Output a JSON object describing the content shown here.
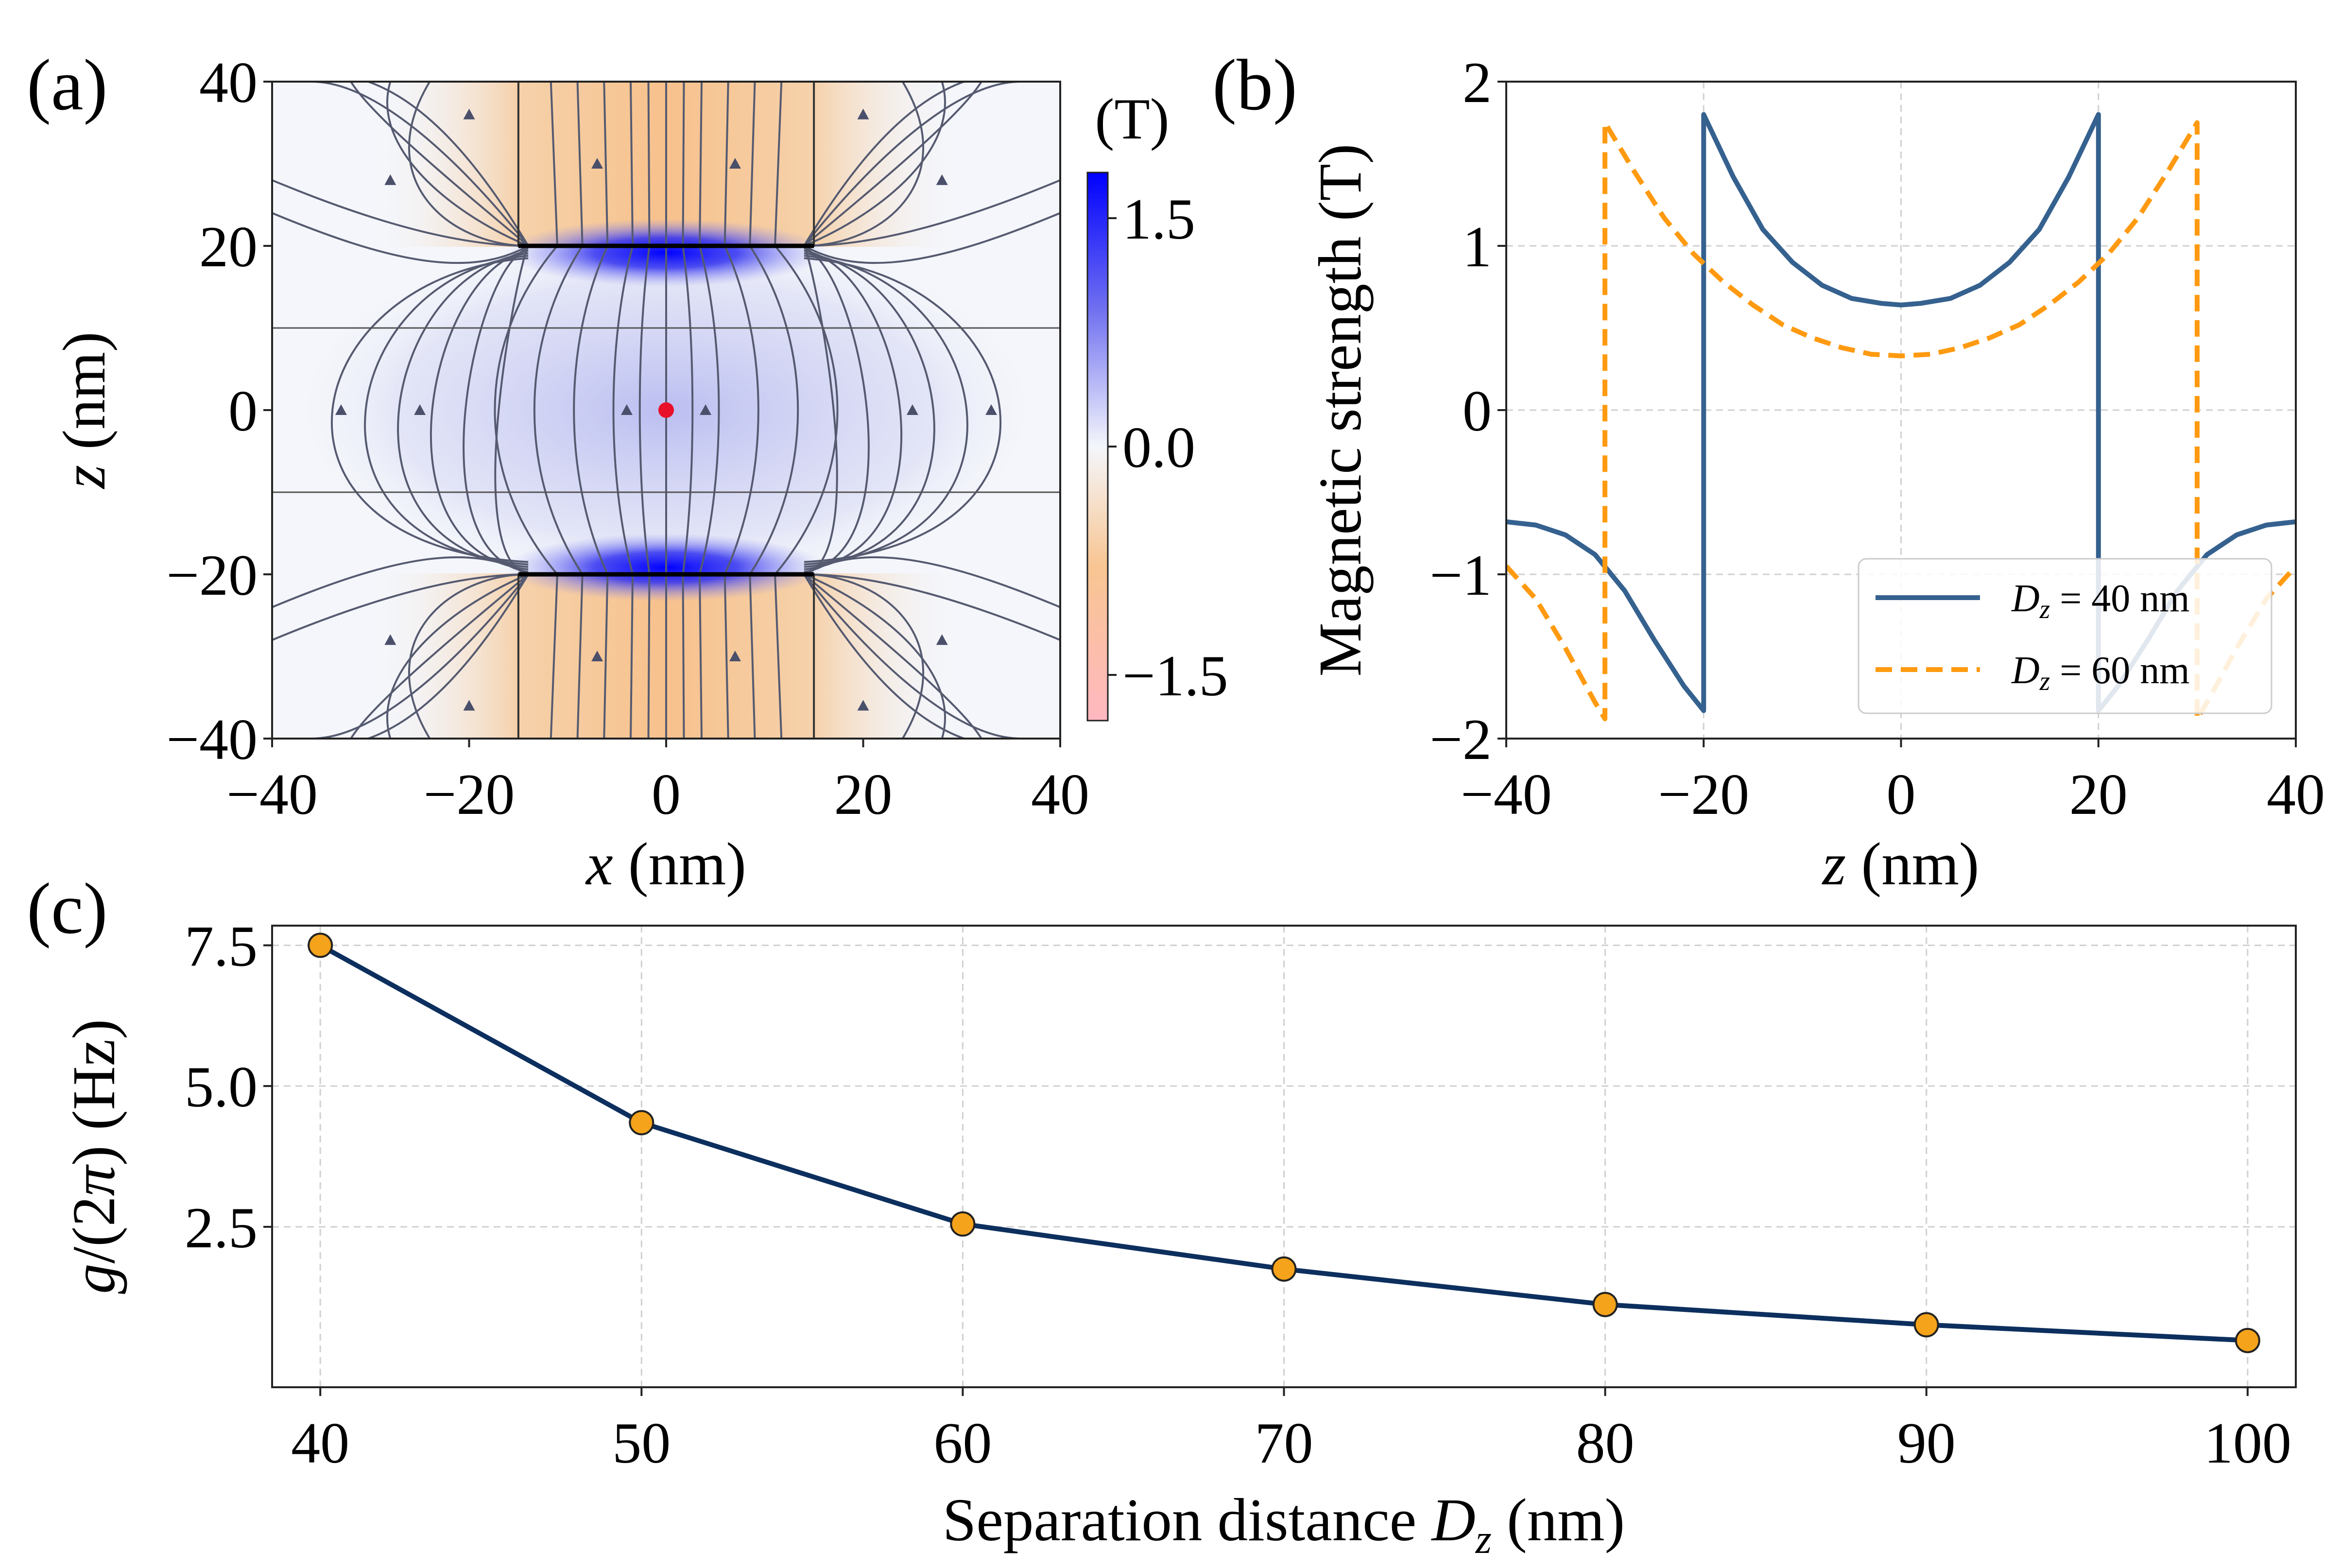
{
  "chart_data": [
    {
      "panel_label": "(a)",
      "type": "heatmap",
      "xlabel": "x (nm)",
      "ylabel": "z (nm)",
      "xlim": [
        -40,
        40
      ],
      "ylim": [
        -40,
        40
      ],
      "xticks": [
        "−40",
        "−20",
        "0",
        "20",
        "40"
      ],
      "yticks": [
        "−40",
        "−20",
        "0",
        "20",
        "40"
      ],
      "colorbar": {
        "unit": "(T)",
        "range": [
          -1.8,
          1.8
        ],
        "ticks": [
          "1.5",
          "0.0",
          "−1.5"
        ],
        "colors": {
          "high": "#0000ff",
          "zero": "#f4f6fb",
          "low": "#ff9a9a",
          "mid_low": "#f6c08a"
        }
      },
      "streamlines": true,
      "magnets": [
        {
          "x": [
            -15,
            15
          ],
          "z": [
            20,
            40
          ]
        },
        {
          "x": [
            -15,
            15
          ],
          "z": [
            -40,
            -20
          ]
        }
      ],
      "horizontal_lines_z": [
        10,
        -10
      ],
      "marker": {
        "x": 0,
        "z": 0,
        "color": "#e8102a"
      }
    },
    {
      "panel_label": "(b)",
      "type": "line",
      "xlabel": "z (nm)",
      "ylabel": "Magnetic strength (T)",
      "xlim": [
        -40,
        40
      ],
      "ylim": [
        -2,
        2
      ],
      "xticks": [
        "−40",
        "−20",
        "0",
        "20",
        "40"
      ],
      "yticks": [
        "2",
        "1",
        "0",
        "−1",
        "−2"
      ],
      "grid": true,
      "legend_position": "lower-right",
      "series": [
        {
          "name": "Dz = 40 nm",
          "color": "#35618f",
          "style": "solid",
          "x": [
            -40,
            -37,
            -34,
            -31,
            -28,
            -25,
            -22,
            -20,
            -20,
            -17,
            -14,
            -11,
            -8,
            -5,
            -2,
            0,
            2,
            5,
            8,
            11,
            14,
            17,
            20,
            20,
            22,
            25,
            28,
            31,
            34,
            37,
            40
          ],
          "y": [
            -0.68,
            -0.7,
            -0.76,
            -0.88,
            -1.1,
            -1.4,
            -1.68,
            -1.83,
            1.8,
            1.42,
            1.1,
            0.9,
            0.76,
            0.68,
            0.65,
            0.64,
            0.65,
            0.68,
            0.76,
            0.9,
            1.1,
            1.42,
            1.8,
            -1.83,
            -1.68,
            -1.4,
            -1.1,
            -0.88,
            -0.76,
            -0.7,
            -0.68
          ]
        },
        {
          "name": "Dz = 60 nm",
          "color": "#ff9a10",
          "style": "dashed",
          "x": [
            -40,
            -37,
            -34,
            -31,
            -30,
            -30,
            -27,
            -24,
            -21,
            -18,
            -15,
            -12,
            -9,
            -6,
            -3,
            0,
            3,
            6,
            9,
            12,
            15,
            18,
            21,
            24,
            27,
            30,
            30,
            31,
            34,
            37,
            40
          ],
          "y": [
            -0.95,
            -1.15,
            -1.45,
            -1.78,
            -1.88,
            1.75,
            1.45,
            1.17,
            0.95,
            0.78,
            0.64,
            0.52,
            0.44,
            0.38,
            0.34,
            0.33,
            0.34,
            0.38,
            0.44,
            0.52,
            0.64,
            0.78,
            0.95,
            1.17,
            1.45,
            1.75,
            -1.88,
            -1.78,
            -1.45,
            -1.15,
            -0.95
          ]
        }
      ]
    },
    {
      "panel_label": "(c)",
      "type": "line",
      "xlabel": "Separation distance Dz (nm)",
      "ylabel": "g/(2π) (Hz)",
      "xlim": [
        38.5,
        101.5
      ],
      "ylim": [
        -0.35,
        7.85
      ],
      "xticks": [
        "40",
        "50",
        "60",
        "70",
        "80",
        "90",
        "100"
      ],
      "yticks": [
        "7.5",
        "5.0",
        "2.5"
      ],
      "grid": true,
      "series": [
        {
          "line_color": "#0c2f5e",
          "marker_color": "#f5a31a",
          "x": [
            40,
            50,
            60,
            70,
            80,
            90,
            100
          ],
          "y": [
            7.5,
            4.35,
            2.55,
            1.75,
            1.12,
            0.76,
            0.48
          ]
        }
      ]
    }
  ]
}
